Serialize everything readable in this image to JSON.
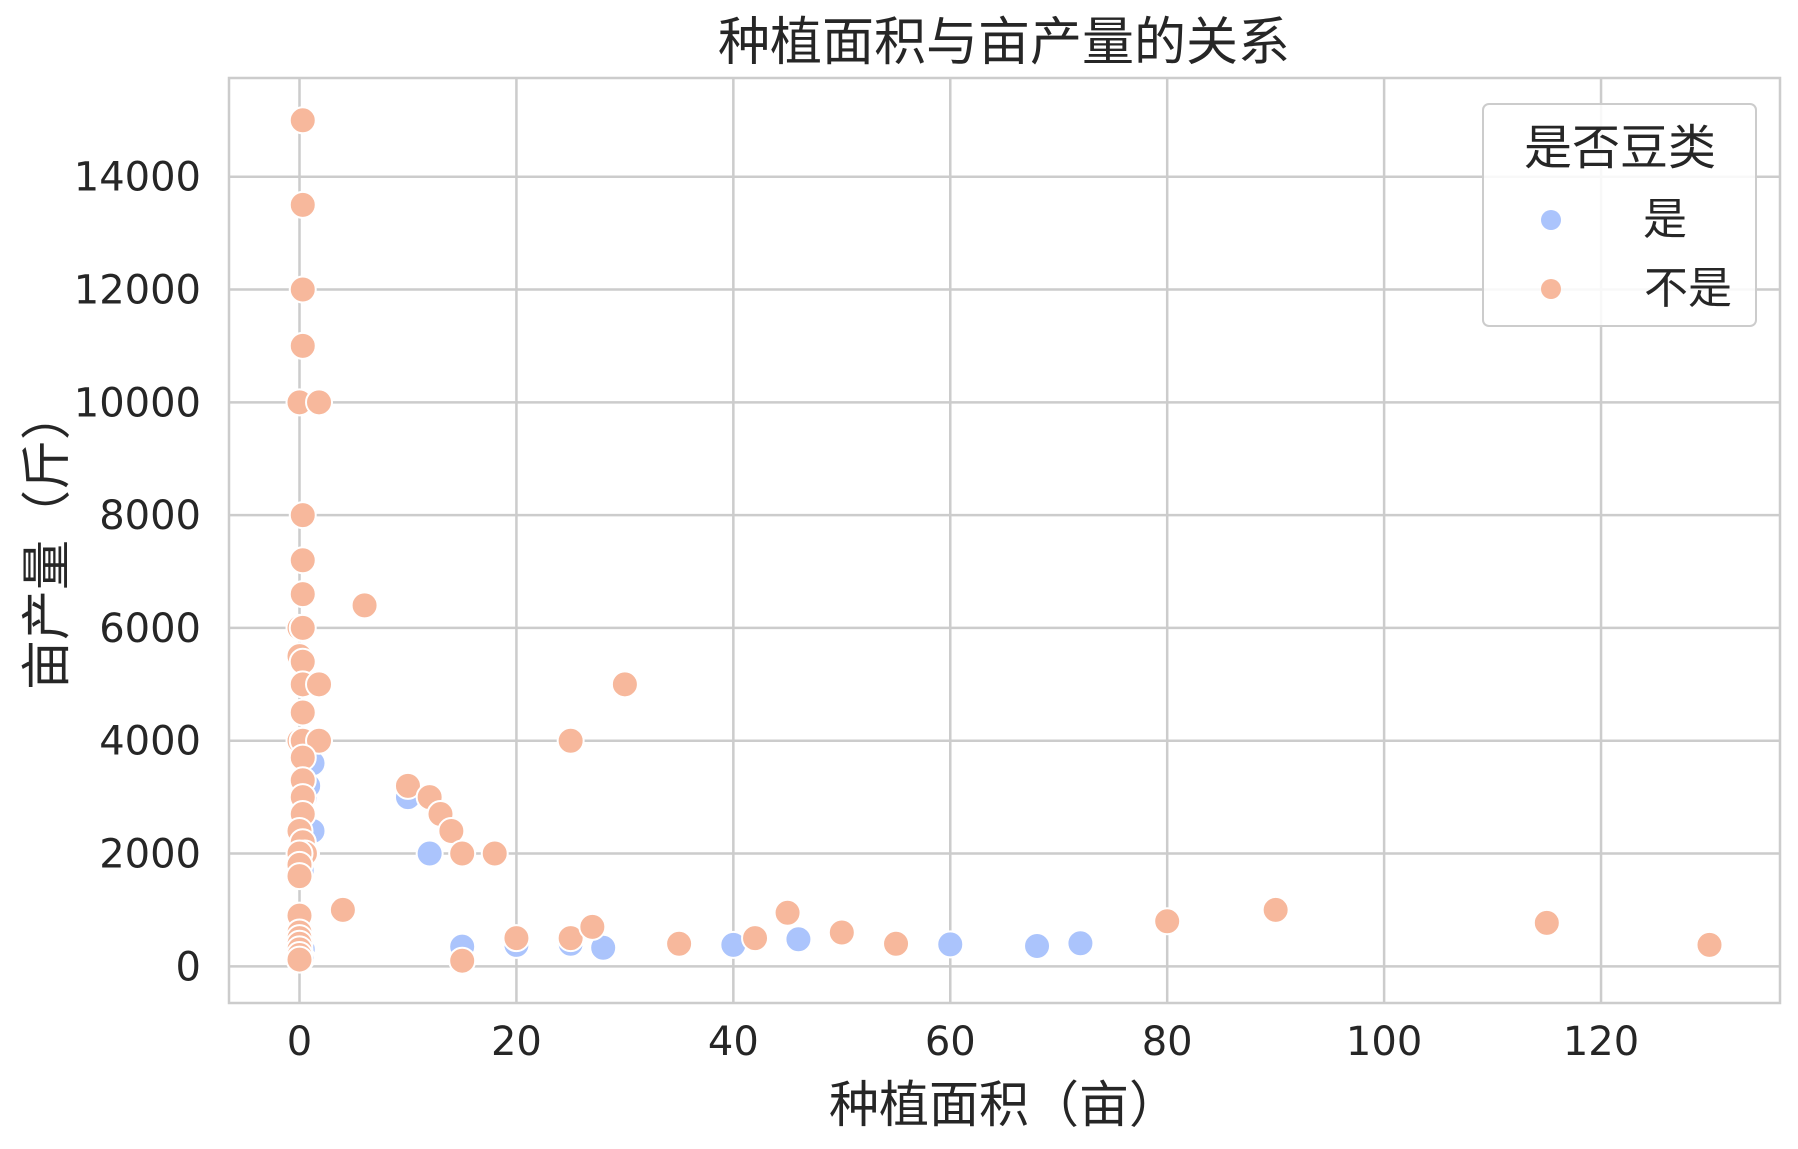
{
  "chart_data": {
    "type": "scatter",
    "title": "种植面积与亩产量的关系",
    "xlabel": "种植面积（亩）",
    "ylabel": "亩产量（斤）",
    "xlim": [
      -6.5,
      136.5
    ],
    "ylim": [
      -650,
      15750
    ],
    "xticks": [
      0,
      20,
      40,
      60,
      80,
      100,
      120
    ],
    "yticks": [
      0,
      2000,
      4000,
      6000,
      8000,
      10000,
      12000,
      14000
    ],
    "grid": true,
    "legend": {
      "title": "是否豆类",
      "placement": "top-right"
    },
    "series": [
      {
        "name": "是",
        "color": "#abc4fc",
        "points": [
          [
            0.5,
            3000
          ],
          [
            0.8,
            3200
          ],
          [
            1.2,
            3600
          ],
          [
            1.2,
            2400
          ],
          [
            0.6,
            2000
          ],
          [
            0.3,
            2200
          ],
          [
            0.2,
            1700
          ],
          [
            10,
            3000
          ],
          [
            12,
            2000
          ],
          [
            15,
            350
          ],
          [
            20,
            380
          ],
          [
            25,
            400
          ],
          [
            28,
            330
          ],
          [
            40,
            380
          ],
          [
            46,
            480
          ],
          [
            60,
            390
          ],
          [
            68,
            360
          ],
          [
            72,
            410
          ],
          [
            0.3,
            300
          ],
          [
            0.2,
            150
          ]
        ]
      },
      {
        "name": "不是",
        "color": "#f7b89c",
        "points": [
          [
            0.3,
            15000
          ],
          [
            0.3,
            13500
          ],
          [
            0.3,
            12000
          ],
          [
            0.3,
            11000
          ],
          [
            0,
            10000
          ],
          [
            1.8,
            10000
          ],
          [
            0.3,
            8000
          ],
          [
            0.3,
            7200
          ],
          [
            0.3,
            6600
          ],
          [
            0,
            6000
          ],
          [
            0.3,
            6000
          ],
          [
            0,
            5500
          ],
          [
            0.3,
            5400
          ],
          [
            0.3,
            5000
          ],
          [
            1.8,
            5000
          ],
          [
            6,
            6400
          ],
          [
            0.3,
            4500
          ],
          [
            0,
            4000
          ],
          [
            0.3,
            4000
          ],
          [
            1.8,
            4000
          ],
          [
            0.3,
            3700
          ],
          [
            0.3,
            3300
          ],
          [
            0.3,
            3000
          ],
          [
            0.3,
            2700
          ],
          [
            0,
            2400
          ],
          [
            0.3,
            2200
          ],
          [
            0.5,
            2000
          ],
          [
            0,
            2000
          ],
          [
            0,
            1800
          ],
          [
            0,
            1600
          ],
          [
            0,
            900
          ],
          [
            0,
            600
          ],
          [
            0,
            500
          ],
          [
            0,
            400
          ],
          [
            0,
            300
          ],
          [
            0,
            200
          ],
          [
            0,
            120
          ],
          [
            4,
            1000
          ],
          [
            10,
            3200
          ],
          [
            12,
            3000
          ],
          [
            13,
            2700
          ],
          [
            14,
            2400
          ],
          [
            15,
            2000
          ],
          [
            18,
            2000
          ],
          [
            15,
            100
          ],
          [
            20,
            500
          ],
          [
            25,
            4000
          ],
          [
            25,
            500
          ],
          [
            27,
            700
          ],
          [
            30,
            5000
          ],
          [
            35,
            400
          ],
          [
            42,
            500
          ],
          [
            45,
            950
          ],
          [
            50,
            600
          ],
          [
            55,
            400
          ],
          [
            80,
            800
          ],
          [
            90,
            1000
          ],
          [
            115,
            770
          ],
          [
            130,
            380
          ]
        ]
      }
    ]
  }
}
